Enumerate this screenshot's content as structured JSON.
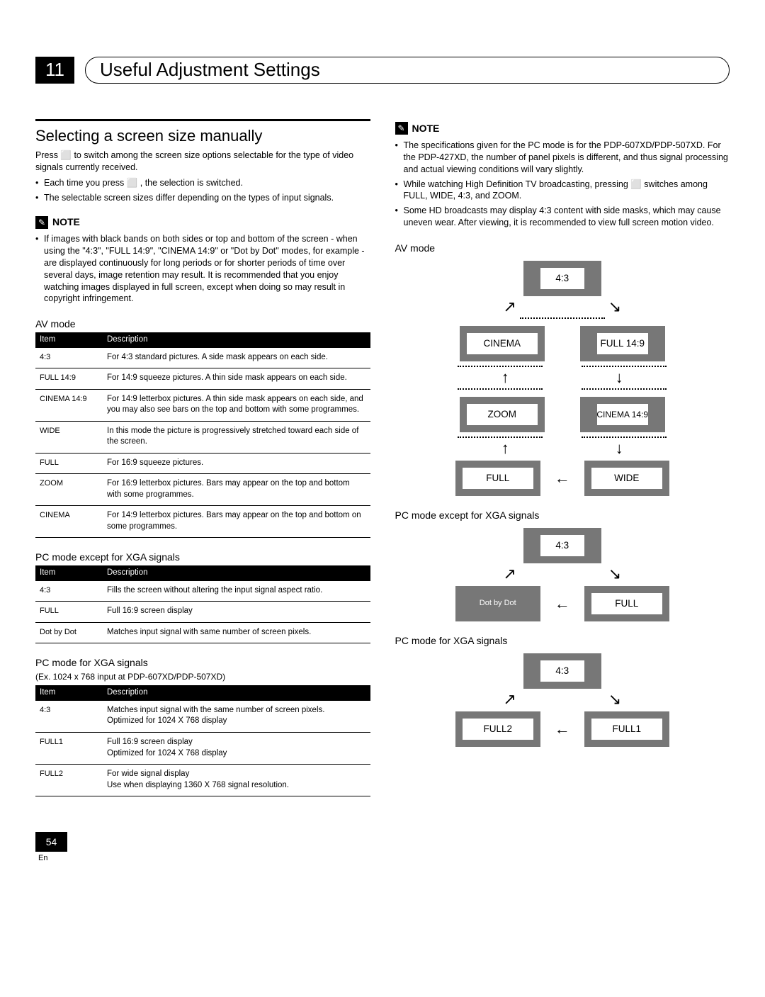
{
  "chapter": {
    "number": "11",
    "title": "Useful Adjustment Settings"
  },
  "left": {
    "heading": "Selecting a screen size manually",
    "intro": "Press ⬜ to switch among the screen size options selectable for the type of video signals currently received.",
    "intro_bullets": [
      "Each time you press ⬜ , the selection is switched.",
      "The selectable screen sizes differ depending on the types of input signals."
    ],
    "note_label": "NOTE",
    "note_bullets": [
      "If images with black bands on both sides or top and bottom of the screen - when using the \"4:3\", \"FULL 14:9\", \"CINEMA 14:9\" or \"Dot by Dot\" modes, for example - are displayed continuously for long periods or for shorter periods of time over several days, image retention may result. It is recommended that you enjoy watching images displayed in full screen, except when doing so may result in copyright infringement."
    ],
    "av_mode_label": "AV mode",
    "table_headers": {
      "c1": "Item",
      "c2": "Description"
    },
    "av_table": [
      {
        "item": "4:3",
        "desc": "For 4:3 standard pictures. A side mask appears on each side."
      },
      {
        "item": "FULL 14:9",
        "desc": "For 14:9 squeeze pictures. A thin side mask appears on each side."
      },
      {
        "item": "CINEMA 14:9",
        "desc": "For 14:9 letterbox pictures. A thin side mask appears on each side, and you may also see bars on the top and bottom with some programmes."
      },
      {
        "item": "WIDE",
        "desc": "In this mode the picture is progressively stretched toward each side of the screen."
      },
      {
        "item": "FULL",
        "desc": "For 16:9 squeeze pictures."
      },
      {
        "item": "ZOOM",
        "desc": "For 16:9 letterbox pictures. Bars may appear on the top and bottom with some programmes."
      },
      {
        "item": "CINEMA",
        "desc": "For 14:9 letterbox pictures. Bars may appear on the top and bottom on some programmes."
      }
    ],
    "pc_ex_label": "PC mode except for XGA signals",
    "pc_ex_table": [
      {
        "item": "4:3",
        "desc": "Fills the screen without altering the input signal aspect ratio."
      },
      {
        "item": "FULL",
        "desc": "Full 16:9 screen display"
      },
      {
        "item": "Dot by Dot",
        "desc": "Matches input signal with same number of screen pixels."
      }
    ],
    "pc_xga_label": "PC mode for XGA signals",
    "pc_xga_sub": "(Ex. 1024 x 768 input at PDP-607XD/PDP-507XD)",
    "pc_xga_table": [
      {
        "item": "4:3",
        "desc": "Matches input signal with the same number of screen pixels.\nOptimized for 1024 X 768 display"
      },
      {
        "item": "FULL1",
        "desc": "Full 16:9 screen display\nOptimized for 1024 X 768 display"
      },
      {
        "item": "FULL2",
        "desc": "For wide signal display\nUse when displaying 1360 X 768 signal resolution."
      }
    ]
  },
  "right": {
    "note_label": "NOTE",
    "note_bullets": [
      "The specifications given for the PC mode is for the PDP-607XD/PDP-507XD. For the PDP-427XD, the number of panel pixels is different, and thus signal processing and actual viewing conditions will vary slightly.",
      "While watching High Definition TV broadcasting, pressing ⬜ switches among FULL, WIDE, 4:3, and ZOOM.",
      "Some HD broadcasts may display 4:3 content with side masks, which may cause uneven wear.  After viewing, it is recommended to view full screen motion video."
    ],
    "diagrams": {
      "av_label": "AV mode",
      "av_states": {
        "s43": "4:3",
        "cinema": "CINEMA",
        "full149": "FULL 14:9",
        "zoom": "ZOOM",
        "cinema149": "CINEMA 14:9",
        "full": "FULL",
        "wide": "WIDE"
      },
      "pc_ex_label": "PC mode except for XGA signals",
      "pc_ex_states": {
        "s43": "4:3",
        "dot": "Dot by Dot",
        "full": "FULL"
      },
      "pc_xga_label": "PC mode for XGA signals",
      "pc_xga_states": {
        "s43": "4:3",
        "full2": "FULL2",
        "full1": "FULL1"
      }
    }
  },
  "footer": {
    "page": "54",
    "lang": "En"
  }
}
